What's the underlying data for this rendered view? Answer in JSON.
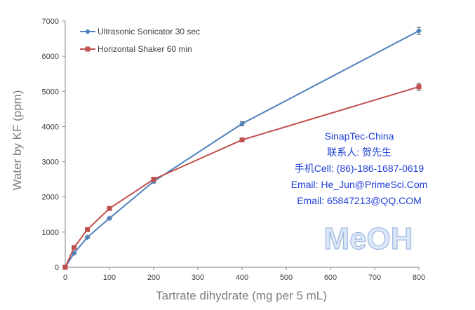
{
  "chart_data": {
    "type": "line",
    "x_values": [
      0,
      20,
      50,
      100,
      200,
      400,
      800
    ],
    "series": [
      {
        "name": "Ultrasonic Sonicator 30 sec",
        "color": "#4f81bd",
        "marker": "diamond",
        "values": [
          0,
          400,
          850,
          1390,
          2440,
          4080,
          6720
        ],
        "error": [
          0,
          30,
          40,
          40,
          50,
          60,
          100
        ]
      },
      {
        "name": "Horizontal Shaker 60 min",
        "color": "#c0504d",
        "marker": "square",
        "values": [
          0,
          560,
          1070,
          1670,
          2500,
          3620,
          5130
        ],
        "error": [
          0,
          30,
          40,
          50,
          50,
          40,
          100
        ]
      }
    ],
    "xlabel": "Tartrate dihydrate (mg per 5 mL)",
    "ylabel": "Water by KF (ppm)",
    "xlim": [
      0,
      800
    ],
    "ylim": [
      0,
      7000
    ],
    "x_ticks": [
      "0",
      "100",
      "200",
      "300",
      "400",
      "500",
      "600",
      "700",
      "800"
    ],
    "y_ticks": [
      "0",
      "1000",
      "2000",
      "3000",
      "4000",
      "5000",
      "6000",
      "7000"
    ],
    "grid": false,
    "legend_position": "top-left"
  },
  "watermark": {
    "lines": [
      "SinapTec-China",
      "联系人: 贺先生",
      "手机Cell: (86)-186-1687-0619",
      "Email: He_Jun@PrimeSci.Com",
      "Email: 65847213@QQ.COM"
    ],
    "color": "#1f3fd6"
  },
  "solvent_label": "MeOH"
}
